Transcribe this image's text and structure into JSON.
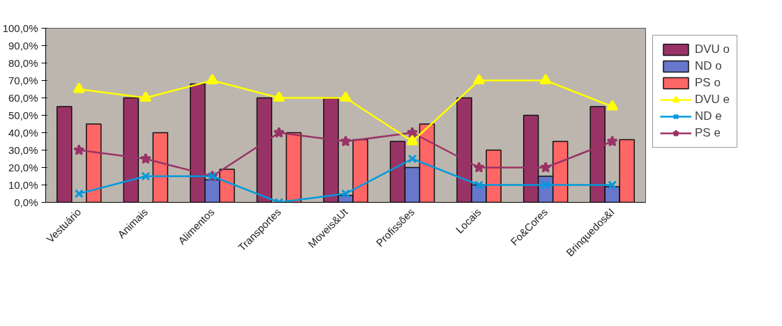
{
  "chart_data": {
    "type": "bar",
    "categories": [
      "Vestuário",
      "Animais",
      "Alimentos",
      "Transportes",
      "Moveis&Ut",
      "Profissões",
      "Locais",
      "Fo&Cores",
      "Brinquedos&I"
    ],
    "series": [
      {
        "name": "DVU o",
        "color": "#993366",
        "values": [
          55,
          60,
          68,
          60,
          60,
          35,
          60,
          50,
          55
        ]
      },
      {
        "name": "ND o",
        "color": "#6677cc",
        "values": [
          null,
          null,
          13,
          null,
          4,
          20,
          10,
          15,
          9
        ]
      },
      {
        "name": "PS o",
        "color": "#ff6666",
        "values": [
          45,
          40,
          19,
          40,
          36,
          45,
          30,
          35,
          36
        ]
      },
      {
        "name": "DVU e",
        "type": "line",
        "marker": "triangle",
        "color": "#ffff00",
        "values": [
          65,
          60,
          70,
          60,
          60,
          35,
          70,
          70,
          55
        ]
      },
      {
        "name": "ND e",
        "type": "line",
        "marker": "cross",
        "color": "#0099dd",
        "values": [
          5,
          15,
          15,
          0,
          5,
          25,
          10,
          10,
          10
        ]
      },
      {
        "name": "PS e",
        "type": "line",
        "marker": "star",
        "color": "#993366",
        "values": [
          30,
          25,
          15,
          40,
          35,
          40,
          20,
          20,
          35
        ]
      }
    ],
    "ylim": [
      0,
      100
    ],
    "yticks": [
      {
        "value": 0,
        "label": "0,0%"
      },
      {
        "value": 10,
        "label": "10,0%"
      },
      {
        "value": 20,
        "label": "20,0%"
      },
      {
        "value": 30,
        "label": "30,0%"
      },
      {
        "value": 40,
        "label": "40,0%"
      },
      {
        "value": 50,
        "label": "50,0%"
      },
      {
        "value": 60,
        "label": "60,0%"
      },
      {
        "value": 70,
        "label": "70,0%"
      },
      {
        "value": 80,
        "label": "80,0%"
      },
      {
        "value": 90,
        "label": "90,0%"
      },
      {
        "value": 100,
        "label": "100,0%"
      }
    ],
    "grid": false,
    "legend": "right"
  }
}
